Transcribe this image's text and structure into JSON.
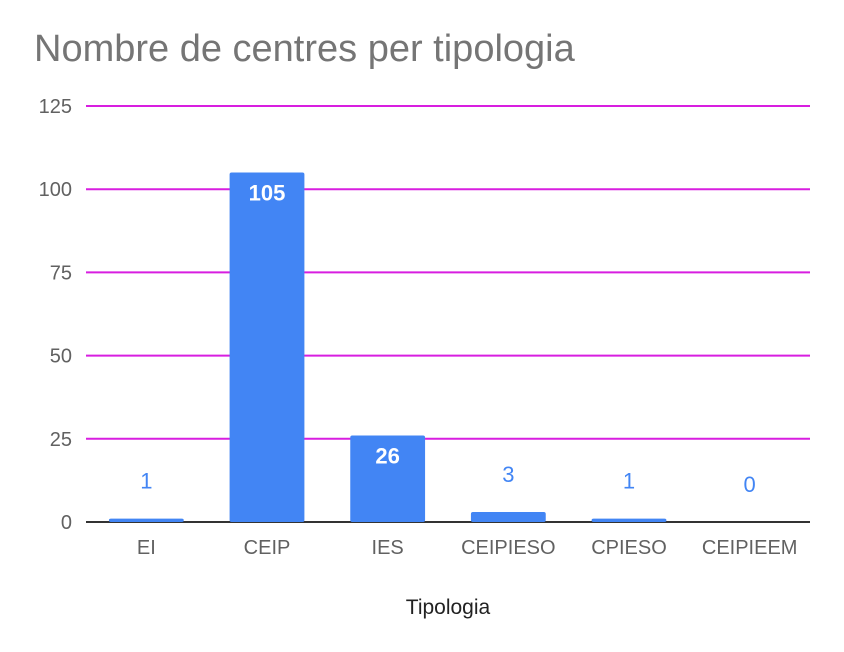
{
  "chart_data": {
    "type": "bar",
    "title": "Nombre de centres per tipologia",
    "xlabel": "Tipologia",
    "ylabel": "",
    "categories": [
      "EI",
      "CEIP",
      "IES",
      "CEIPIESO",
      "CPIESO",
      "CEIPIEEM"
    ],
    "values": [
      1,
      105,
      26,
      3,
      1,
      0
    ],
    "data_labels": [
      "1",
      "105",
      "26",
      "3",
      "1",
      "0"
    ],
    "ylim": [
      0,
      125
    ],
    "yticks": [
      0,
      25,
      50,
      75,
      100,
      125
    ],
    "ytick_labels": [
      "0",
      "25",
      "50",
      "75",
      "100",
      "125"
    ],
    "grid": true,
    "legend": "none",
    "colors": {
      "bar": "#4285f4",
      "gridline": "#d81ee0",
      "baseline": "#333333",
      "label_inside": "#ffffff",
      "label_outside": "#4285f4",
      "title": "#757575"
    }
  }
}
